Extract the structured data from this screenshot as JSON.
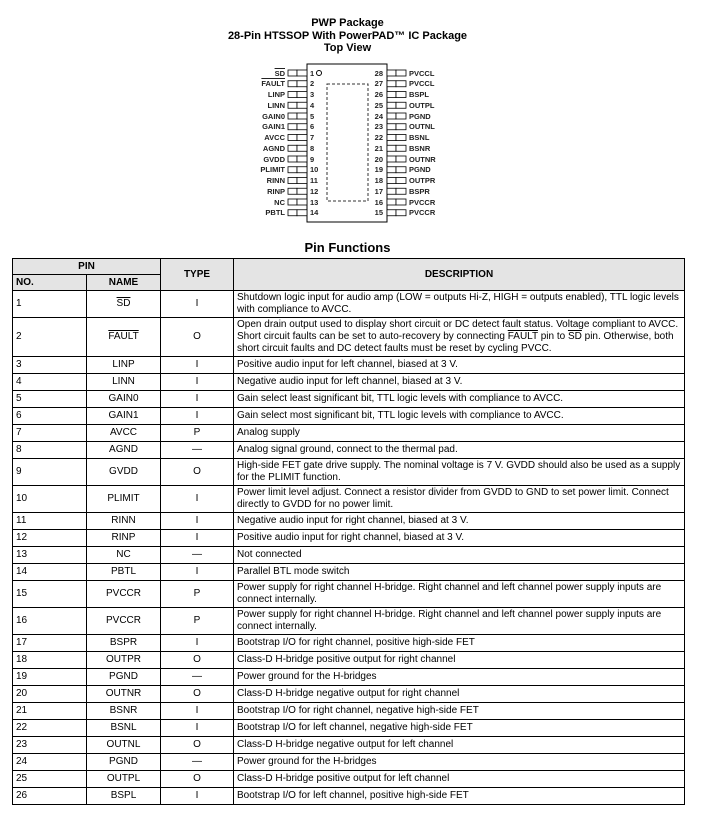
{
  "header": {
    "line1": "PWP Package",
    "line2": "28-Pin HTSSOP With PowerPAD™ IC Package",
    "line3": "Top View"
  },
  "package": {
    "left_pins": [
      {
        "no": "1",
        "name": "SD",
        "overline": true
      },
      {
        "no": "2",
        "name": "FAULT",
        "overline": true
      },
      {
        "no": "3",
        "name": "LINP"
      },
      {
        "no": "4",
        "name": "LINN"
      },
      {
        "no": "5",
        "name": "GAIN0"
      },
      {
        "no": "6",
        "name": "GAIN1"
      },
      {
        "no": "7",
        "name": "AVCC"
      },
      {
        "no": "8",
        "name": "AGND"
      },
      {
        "no": "9",
        "name": "GVDD"
      },
      {
        "no": "10",
        "name": "PLIMIT"
      },
      {
        "no": "11",
        "name": "RINN"
      },
      {
        "no": "12",
        "name": "RINP"
      },
      {
        "no": "13",
        "name": "NC"
      },
      {
        "no": "14",
        "name": "PBTL"
      }
    ],
    "right_pins": [
      {
        "no": "28",
        "name": "PVCCL"
      },
      {
        "no": "27",
        "name": "PVCCL"
      },
      {
        "no": "26",
        "name": "BSPL"
      },
      {
        "no": "25",
        "name": "OUTPL"
      },
      {
        "no": "24",
        "name": "PGND"
      },
      {
        "no": "23",
        "name": "OUTNL"
      },
      {
        "no": "22",
        "name": "BSNL"
      },
      {
        "no": "21",
        "name": "BSNR"
      },
      {
        "no": "20",
        "name": "OUTNR"
      },
      {
        "no": "19",
        "name": "PGND"
      },
      {
        "no": "18",
        "name": "OUTPR"
      },
      {
        "no": "17",
        "name": "BSPR"
      },
      {
        "no": "16",
        "name": "PVCCR"
      },
      {
        "no": "15",
        "name": "PVCCR"
      }
    ]
  },
  "table": {
    "title": "Pin Functions",
    "headers": {
      "pin": "PIN",
      "no": "NO.",
      "name": "NAME",
      "type": "TYPE",
      "description": "DESCRIPTION"
    },
    "rows": [
      {
        "no": "1",
        "name": "SD",
        "name_overline": true,
        "type": "I",
        "description": [
          {
            "t": "Shutdown logic input for audio amp (LOW = outputs Hi-Z, HIGH = outputs enabled), TTL logic levels with compliance to AVCC."
          }
        ]
      },
      {
        "no": "2",
        "name": "FAULT",
        "name_overline": true,
        "type": "O",
        "description": [
          {
            "t": "Open drain output used to display short circuit or DC detect fault status. Voltage compliant to AVCC. Short circuit faults can be set to auto-recovery by connecting "
          },
          {
            "t": "FAULT",
            "o": true
          },
          {
            "t": " pin to "
          },
          {
            "t": "SD",
            "o": true
          },
          {
            "t": " pin. Otherwise, both short circuit faults and DC detect faults must be reset by cycling PVCC."
          }
        ]
      },
      {
        "no": "3",
        "name": "LINP",
        "type": "I",
        "description": [
          {
            "t": "Positive audio input for left channel, biased at 3 V."
          }
        ]
      },
      {
        "no": "4",
        "name": "LINN",
        "type": "I",
        "description": [
          {
            "t": "Negative audio input for left channel, biased at 3 V."
          }
        ]
      },
      {
        "no": "5",
        "name": "GAIN0",
        "type": "I",
        "description": [
          {
            "t": "Gain select least significant bit, TTL logic levels with compliance to AVCC."
          }
        ]
      },
      {
        "no": "6",
        "name": "GAIN1",
        "type": "I",
        "description": [
          {
            "t": "Gain select most significant bit, TTL logic levels with compliance to AVCC."
          }
        ]
      },
      {
        "no": "7",
        "name": "AVCC",
        "type": "P",
        "description": [
          {
            "t": "Analog supply"
          }
        ]
      },
      {
        "no": "8",
        "name": "AGND",
        "type": "—",
        "description": [
          {
            "t": "Analog signal ground, connect to the thermal pad."
          }
        ]
      },
      {
        "no": "9",
        "name": "GVDD",
        "type": "O",
        "description": [
          {
            "t": "High-side FET gate drive supply. The nominal voltage is 7 V. GVDD should also be used as a supply for the PLIMIT function."
          }
        ]
      },
      {
        "no": "10",
        "name": "PLIMIT",
        "type": "I",
        "description": [
          {
            "t": "Power limit level adjust. Connect a resistor divider from GVDD to GND to set power limit. Connect directly to GVDD for no power limit."
          }
        ]
      },
      {
        "no": "11",
        "name": "RINN",
        "type": "I",
        "description": [
          {
            "t": "Negative audio input for right channel, biased at 3 V."
          }
        ]
      },
      {
        "no": "12",
        "name": "RINP",
        "type": "I",
        "description": [
          {
            "t": "Positive audio input for right channel, biased at 3 V."
          }
        ]
      },
      {
        "no": "13",
        "name": "NC",
        "type": "—",
        "description": [
          {
            "t": "Not connected"
          }
        ]
      },
      {
        "no": "14",
        "name": "PBTL",
        "type": "I",
        "description": [
          {
            "t": "Parallel BTL mode switch"
          }
        ]
      },
      {
        "no": "15",
        "name": "PVCCR",
        "type": "P",
        "description": [
          {
            "t": "Power supply for right channel H-bridge. Right channel and left channel power supply inputs are connect internally."
          }
        ]
      },
      {
        "no": "16",
        "name": "PVCCR",
        "type": "P",
        "description": [
          {
            "t": "Power supply for right channel H-bridge. Right channel and left channel power supply inputs are connect internally."
          }
        ]
      },
      {
        "no": "17",
        "name": "BSPR",
        "type": "I",
        "description": [
          {
            "t": "Bootstrap I/O for right channel, positive high-side FET"
          }
        ]
      },
      {
        "no": "18",
        "name": "OUTPR",
        "type": "O",
        "description": [
          {
            "t": "Class-D H-bridge positive output for right channel"
          }
        ]
      },
      {
        "no": "19",
        "name": "PGND",
        "type": "—",
        "description": [
          {
            "t": "Power ground for the H-bridges"
          }
        ]
      },
      {
        "no": "20",
        "name": "OUTNR",
        "type": "O",
        "description": [
          {
            "t": "Class-D H-bridge negative output for right channel"
          }
        ]
      },
      {
        "no": "21",
        "name": "BSNR",
        "type": "I",
        "description": [
          {
            "t": "Bootstrap I/O for right channel, negative high-side FET"
          }
        ]
      },
      {
        "no": "22",
        "name": "BSNL",
        "type": "I",
        "description": [
          {
            "t": "Bootstrap I/O for left channel, negative high-side FET"
          }
        ]
      },
      {
        "no": "23",
        "name": "OUTNL",
        "type": "O",
        "description": [
          {
            "t": "Class-D H-bridge negative output for left channel"
          }
        ]
      },
      {
        "no": "24",
        "name": "PGND",
        "type": "—",
        "description": [
          {
            "t": "Power ground for the H-bridges"
          }
        ]
      },
      {
        "no": "25",
        "name": "OUTPL",
        "type": "O",
        "description": [
          {
            "t": "Class-D H-bridge positive output for left channel"
          }
        ]
      },
      {
        "no": "26",
        "name": "BSPL",
        "type": "I",
        "description": [
          {
            "t": "Bootstrap I/O for left channel, positive high-side FET"
          }
        ]
      }
    ]
  }
}
